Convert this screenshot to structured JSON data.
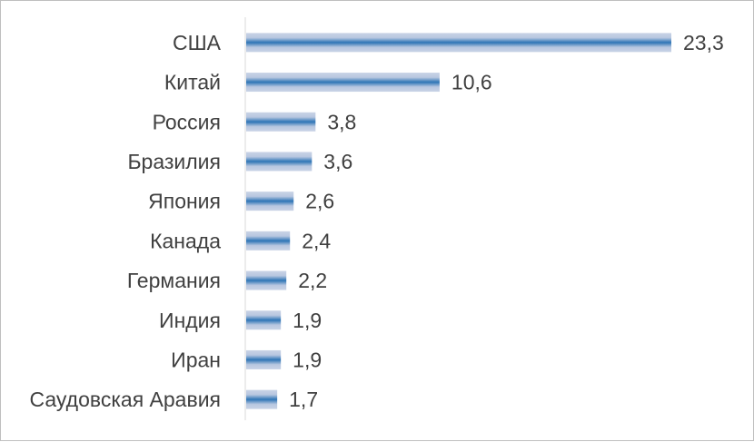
{
  "chart_data": {
    "type": "bar",
    "orientation": "horizontal",
    "categories": [
      "США",
      "Китай",
      "Россия",
      "Бразилия",
      "Япония",
      "Канада",
      "Германия",
      "Индия",
      "Иран",
      "Саудовская Аравия"
    ],
    "values": [
      23.3,
      10.6,
      3.8,
      3.6,
      2.6,
      2.4,
      2.2,
      1.9,
      1.9,
      1.7
    ],
    "value_labels": [
      "23,3",
      "10,6",
      "3,8",
      "3,6",
      "2,6",
      "2,4",
      "2,2",
      "1,9",
      "1,9",
      "1,7"
    ],
    "title": "",
    "xlabel": "",
    "ylabel": "",
    "xlim": [
      0,
      25
    ],
    "grid": false,
    "legend": "none",
    "colors": {
      "bar_light": "#c9d3e6",
      "bar_dark": "#2e75b6",
      "text": "#404040",
      "axis": "#d9d9d9"
    }
  }
}
